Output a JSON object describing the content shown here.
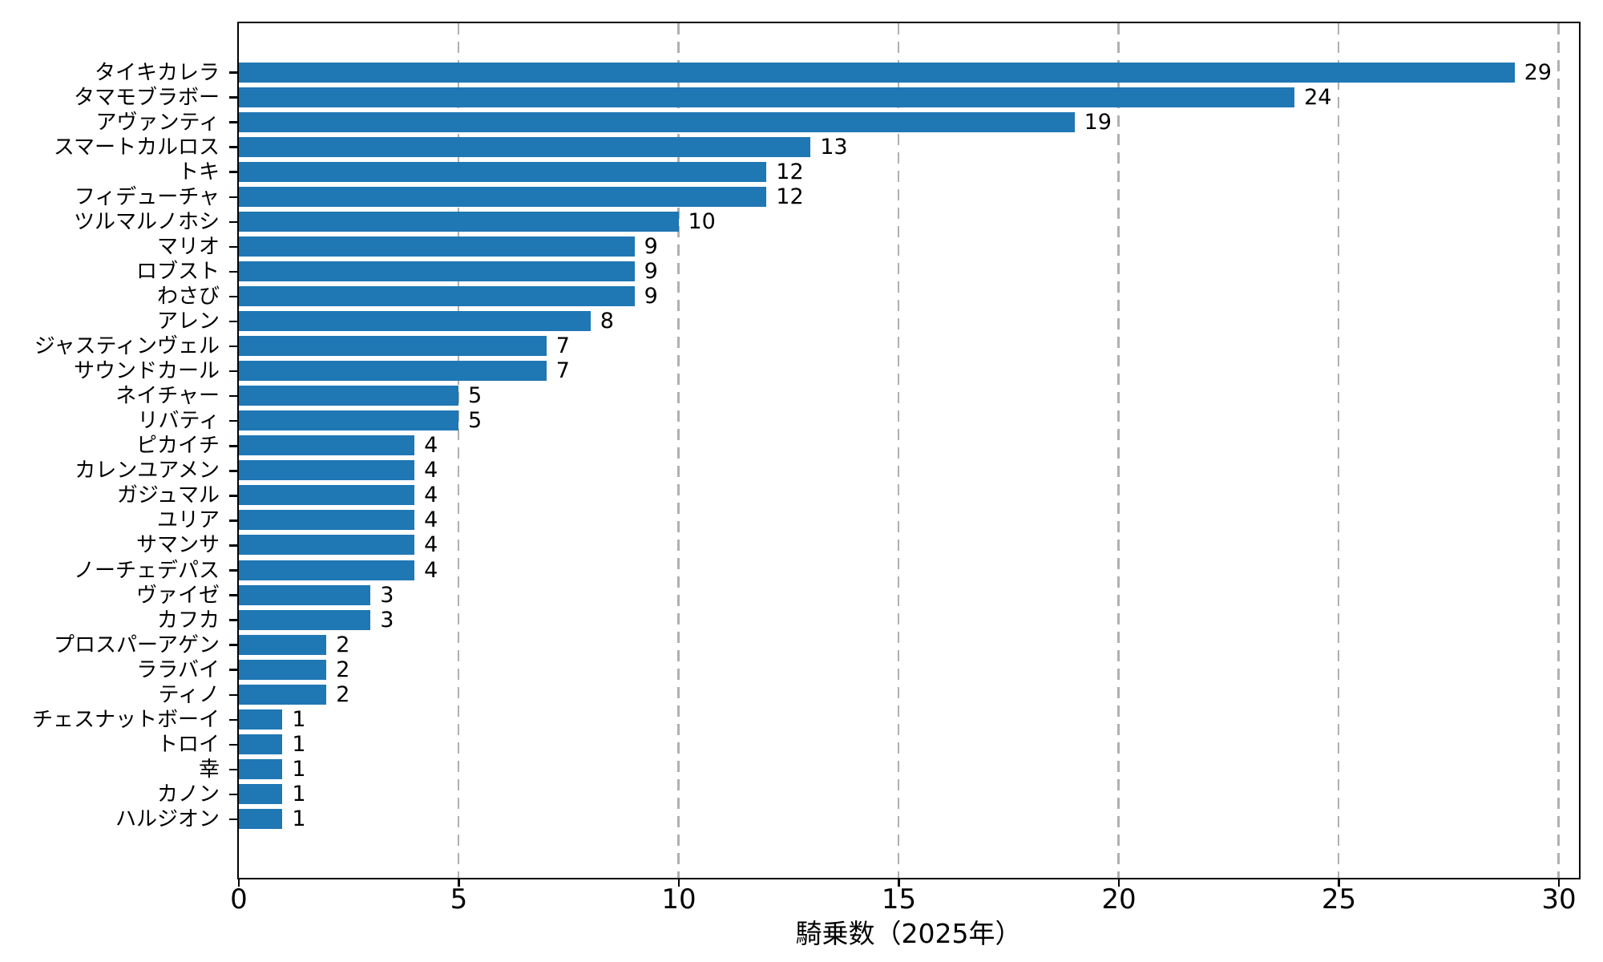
{
  "chart_data": {
    "type": "bar",
    "orientation": "horizontal",
    "title": "",
    "xlabel": "騎乗数（2025年）",
    "ylabel": "",
    "xlim": [
      0,
      30.4
    ],
    "xticks": [
      0,
      5,
      10,
      15,
      20,
      25,
      30
    ],
    "grid": "vertical dashed gridlines at each x tick, drawn behind bars",
    "legend": "none",
    "bar_color": "#1f77b4",
    "grid_color": "#b0b0b0",
    "spine_color": "#000000",
    "text_color": "#000000",
    "value_labels_shown": true,
    "categories": [
      "タイキカレラ",
      "タマモブラボー",
      "アヴァンティ",
      "スマートカルロス",
      "トキ",
      "フィデューチャ",
      "ツルマルノホシ",
      "マリオ",
      "ロブスト",
      "わさび",
      "アレン",
      "ジャスティンヴェル",
      "サウンドカール",
      "ネイチャー",
      "リバティ",
      "ピカイチ",
      "カレンユアメン",
      "ガジュマル",
      "ユリア",
      "サマンサ",
      "ノーチェデパス",
      "ヴァイゼ",
      "カフカ",
      "プロスパーアゲン",
      "ララバイ",
      "ティノ",
      "チェスナットボーイ",
      "トロイ",
      "幸",
      "カノン",
      "ハルジオン"
    ],
    "values": [
      29,
      24,
      19,
      13,
      12,
      12,
      10,
      9,
      9,
      9,
      8,
      7,
      7,
      5,
      5,
      4,
      4,
      4,
      4,
      4,
      4,
      3,
      3,
      2,
      2,
      2,
      1,
      1,
      1,
      1,
      1
    ]
  }
}
